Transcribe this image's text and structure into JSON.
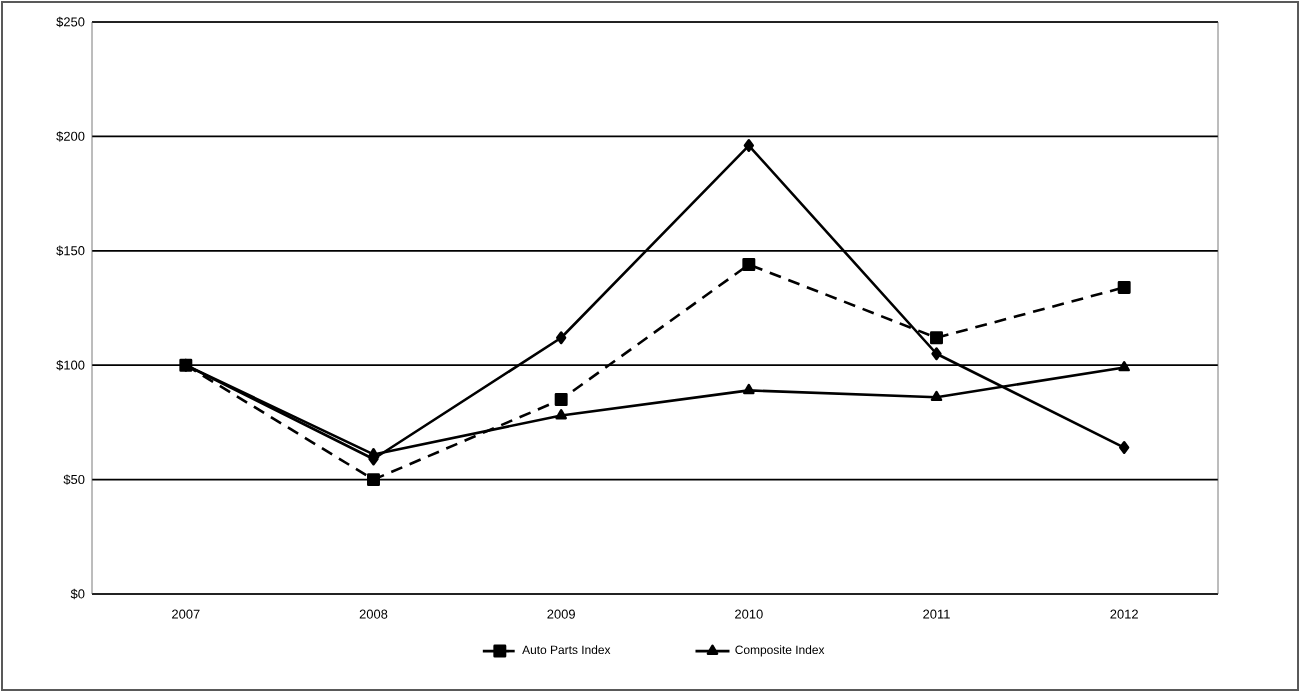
{
  "chart_data": {
    "type": "line",
    "categories": [
      "2007",
      "2008",
      "2009",
      "2010",
      "2011",
      "2012"
    ],
    "series": [
      {
        "color": "#000000",
        "marker": "diamond",
        "line_style": "solid",
        "values": [
          100,
          59,
          112,
          196,
          105,
          64
        ]
      },
      {
        "name": "Auto Parts Index",
        "color": "#000000",
        "marker": "square",
        "line_style": "dashed",
        "values": [
          100,
          50,
          85,
          144,
          112,
          134
        ]
      },
      {
        "name": "Composite Index",
        "color": "#000000",
        "marker": "triangle",
        "line_style": "solid",
        "values": [
          100,
          61,
          78,
          89,
          86,
          99
        ]
      }
    ],
    "ylim": [
      0,
      250
    ],
    "yticks": [
      {
        "value": 0,
        "label": "$0"
      },
      {
        "value": 50,
        "label": "$50"
      },
      {
        "value": 100,
        "label": "$100"
      },
      {
        "value": 150,
        "label": "$150"
      },
      {
        "value": 200,
        "label": "$200"
      },
      {
        "value": 250,
        "label": "$250"
      }
    ],
    "grid": "y",
    "legend": "bottom"
  }
}
